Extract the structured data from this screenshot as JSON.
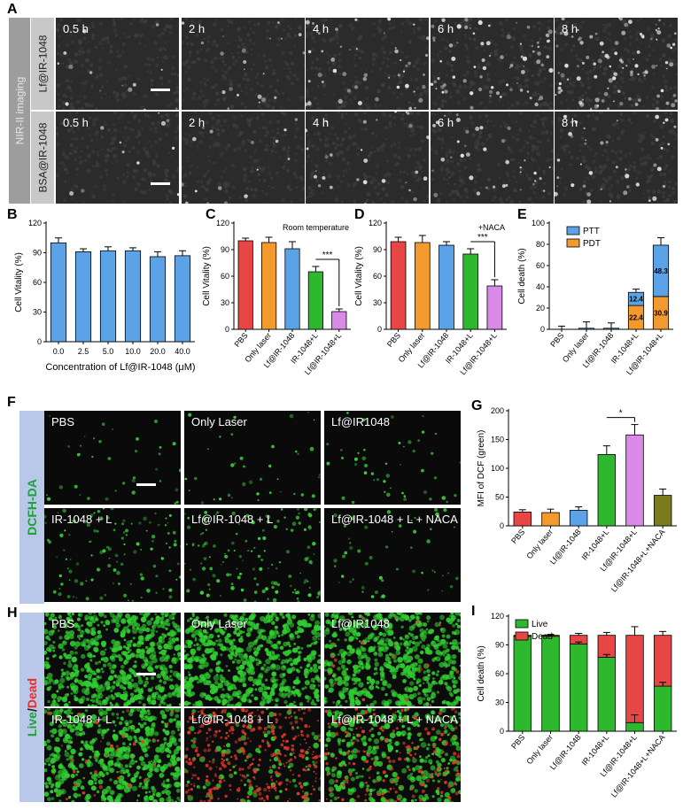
{
  "panels": {
    "A": "A",
    "B": "B",
    "C": "C",
    "D": "D",
    "E": "E",
    "F": "F",
    "G": "G",
    "H": "H",
    "I": "I"
  },
  "panelA": {
    "group_label": "NIR-II imaging",
    "rows": [
      {
        "label": "Lf@IR-1048",
        "times": [
          "0.5 h",
          "2 h",
          "4 h",
          "6 h",
          "8 h"
        ],
        "density": [
          0.05,
          0.12,
          0.35,
          0.6,
          0.85
        ]
      },
      {
        "label": "BSA@IR-1048",
        "times": [
          "0.5 h",
          "2 h",
          "4 h",
          "6 h",
          "8 h"
        ],
        "density": [
          0.03,
          0.08,
          0.18,
          0.25,
          0.3
        ]
      }
    ]
  },
  "panelF": {
    "row_label": "DCFH-DA",
    "tiles": [
      "PBS",
      "Only Laser",
      "Lf@IR1048",
      "IR-1048 + L",
      "Lf@IR-1048 + L",
      "Lf@IR-1048 + L + NACA"
    ],
    "density": [
      0.03,
      0.04,
      0.08,
      0.45,
      0.55,
      0.12
    ]
  },
  "panelH": {
    "row_label_live": "Live",
    "row_label_sep": "/",
    "row_label_dead": "Dead",
    "tiles": [
      "PBS",
      "Only Laser",
      "Lf@IR1048",
      "IR-1048 + L",
      "Lf@IR-1048 + L",
      "Lf@IR-1048 + L + NACA"
    ],
    "live": [
      0.95,
      0.95,
      0.9,
      0.8,
      0.1,
      0.5
    ],
    "dead": [
      0.0,
      0.0,
      0.05,
      0.1,
      0.85,
      0.45
    ]
  },
  "chart_data": [
    {
      "id": "B",
      "type": "bar",
      "categories": [
        "0.0",
        "2.5",
        "5.0",
        "10.0",
        "20.0",
        "40.0"
      ],
      "values": [
        100,
        91,
        92,
        92,
        86,
        87
      ],
      "errors": [
        5,
        3,
        4,
        3,
        5,
        5
      ],
      "color": "#5BA3E6",
      "xlabel": "Concentration of Lf@IR-1048 (μM)",
      "ylabel": "Cell Vitality (%)",
      "ylim": [
        0,
        120
      ],
      "yticks": [
        0,
        30,
        60,
        90,
        120
      ]
    },
    {
      "id": "C",
      "type": "bar",
      "title": "Room temperature",
      "categories": [
        "PBS",
        "Only laser",
        "Lf@IR-1048",
        "IR-1048+L",
        "Lf@IR-1048+L"
      ],
      "values": [
        100,
        98,
        91,
        65,
        20
      ],
      "errors": [
        3,
        6,
        8,
        6,
        3
      ],
      "colors": [
        "#E84545",
        "#F39A2E",
        "#5BA3E6",
        "#2EB82E",
        "#D98AE8"
      ],
      "ylabel": "Cell Vitality (%)",
      "ylim": [
        0,
        120
      ],
      "yticks": [
        0,
        30,
        60,
        90,
        120
      ],
      "significance": {
        "from": 3,
        "to": 4,
        "label": "***"
      }
    },
    {
      "id": "D",
      "type": "bar",
      "title": "+NACA",
      "categories": [
        "PBS",
        "Only laser",
        "Lf@IR-1048",
        "IR-1048+L",
        "Lf@IR-1048+L"
      ],
      "values": [
        99,
        98,
        95,
        85,
        49
      ],
      "errors": [
        5,
        8,
        4,
        6,
        7
      ],
      "colors": [
        "#E84545",
        "#F39A2E",
        "#5BA3E6",
        "#2EB82E",
        "#D98AE8"
      ],
      "ylabel": "Cell Vitality (%)",
      "ylim": [
        0,
        120
      ],
      "yticks": [
        0,
        30,
        60,
        90,
        120
      ],
      "significance": {
        "from": 3,
        "to": 4,
        "label": "***"
      }
    },
    {
      "id": "E",
      "type": "bar",
      "categories": [
        "PBS",
        "Only laser",
        "Lf@IR-1048",
        "IR-1048+L",
        "Lf@IR-1048+L"
      ],
      "series": [
        {
          "name": "PDT",
          "values": [
            0,
            0,
            0,
            22.4,
            30.9
          ],
          "color": "#F39A2E"
        },
        {
          "name": "PTT",
          "values": [
            0,
            1,
            1,
            12.4,
            48.3
          ],
          "color": "#5BA3E6"
        }
      ],
      "bar_labels": {
        "PDT": [
          "",
          "",
          "",
          "22.4",
          "30.9"
        ],
        "PTT": [
          "",
          "",
          "",
          "12.4",
          "48.3"
        ]
      },
      "errors": [
        3,
        6,
        5,
        3,
        7
      ],
      "ylabel": "Cell death (%)",
      "ylim": [
        0,
        100
      ],
      "yticks": [
        0,
        20,
        40,
        60,
        80,
        100
      ],
      "legend": "top-left"
    },
    {
      "id": "G",
      "type": "bar",
      "categories": [
        "PBS",
        "Only laser",
        "Lf@IR-1048",
        "IR-1048+L",
        "Lf@IR-1048+L",
        "Lf@IR-1048+L+NACA"
      ],
      "values": [
        24,
        23,
        27,
        124,
        158,
        53
      ],
      "errors": [
        4,
        6,
        6,
        15,
        18,
        11
      ],
      "colors": [
        "#E84545",
        "#F39A2E",
        "#5BA3E6",
        "#2EB82E",
        "#D98AE8",
        "#7A7A1F"
      ],
      "ylabel": "MFI of DCF (green)",
      "ylim": [
        0,
        200
      ],
      "yticks": [
        0,
        50,
        100,
        150,
        200
      ],
      "significance": {
        "from": 3,
        "to": 4,
        "label": "*"
      }
    },
    {
      "id": "I",
      "type": "bar",
      "categories": [
        "PBS",
        "Only laser",
        "Lf@IR-1048",
        "IR-1048+L",
        "Lf@IR-1048+L",
        "Lf@IR-1048+L+NACA"
      ],
      "series": [
        {
          "name": "Live",
          "values": [
            99,
            99,
            91,
            77,
            9,
            47
          ],
          "color": "#2EB82E"
        },
        {
          "name": "Dead",
          "values": [
            1,
            1,
            9,
            23,
            91,
            53
          ],
          "color": "#E84545"
        }
      ],
      "errors_live": [
        1,
        1,
        2,
        3,
        8,
        4
      ],
      "errors_total": [
        1,
        1,
        2,
        3,
        9,
        4
      ],
      "ylabel": "Cell death (%)",
      "ylim": [
        0,
        120
      ],
      "yticks": [
        0,
        30,
        60,
        90,
        120
      ],
      "legend": "top-left"
    }
  ]
}
